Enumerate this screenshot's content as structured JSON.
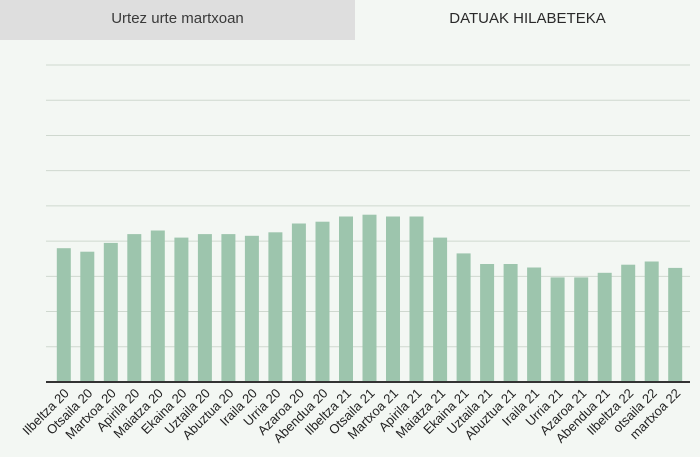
{
  "tabs": [
    {
      "label": "Urtez urte martxoan",
      "active": false
    },
    {
      "label": "DATUAK HILABETEKA",
      "active": true
    }
  ],
  "colors": {
    "bar": "#9dc5ad",
    "grid": "#cfd8cf",
    "axis": "#333333",
    "tab_inactive_bg": "#dedede",
    "background": "#f3f7f3"
  },
  "chart_data": {
    "type": "bar",
    "categories": [
      "Ilbeltza 20",
      "Otsaila 20",
      "Martxoa 20",
      "Apirila 20",
      "Maiatza 20",
      "Ekaina 20",
      "Uztaila 20",
      "Abuztua 20",
      "Iraila 20",
      "Urria 20",
      "Azaroa 20",
      "Abendua 20",
      "Ilbeltza 21",
      "Otsaila 21",
      "Martxoa 21",
      "Apirila 21",
      "Maiatza 21",
      "Ekaina 21",
      "Uztaila 21",
      "Abuztua 21",
      "Iraila 21",
      "Urria 21",
      "Azaroa 21",
      "Abendua 21",
      "Ilbeltza 22",
      "otsaila 22",
      "martxoa 22"
    ],
    "values": [
      3.8,
      3.7,
      3.95,
      4.2,
      4.3,
      4.1,
      4.2,
      4.2,
      4.15,
      4.25,
      4.5,
      4.55,
      4.7,
      4.75,
      4.7,
      4.7,
      4.1,
      3.65,
      3.35,
      3.35,
      3.25,
      2.97,
      2.97,
      3.1,
      3.33,
      3.42,
      3.24
    ],
    "ylim": [
      0,
      9
    ],
    "grid": true,
    "legend": "none",
    "title": "",
    "xlabel": "",
    "ylabel": ""
  }
}
